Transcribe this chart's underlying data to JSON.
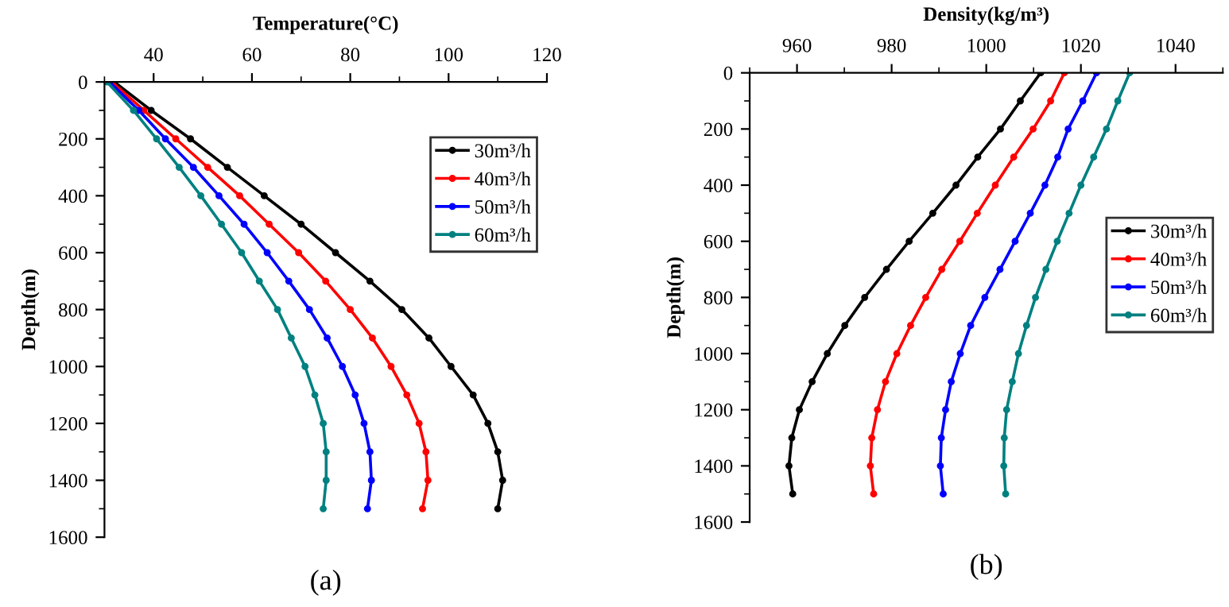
{
  "chart_data": [
    {
      "type": "line",
      "xlabel": "Temperature(°C)",
      "ylabel": "Depth(m)",
      "annotations": [
        "(a)"
      ],
      "xlim": [
        30,
        120
      ],
      "xticks": [
        40,
        60,
        80,
        100,
        120
      ],
      "ylim": [
        1600,
        0
      ],
      "yticks": [
        0,
        200,
        400,
        600,
        800,
        1000,
        1200,
        1400,
        1600
      ],
      "legend": "top right",
      "marker": "circle",
      "grid": false,
      "series": [
        {
          "name": "30m³/h",
          "color": "#000000",
          "x": [
            32,
            39.5,
            47.5,
            55,
            62.5,
            70,
            77,
            84,
            90.5,
            96,
            100.5,
            105,
            108,
            110,
            111,
            110
          ],
          "values": [
            0,
            100,
            200,
            300,
            400,
            500,
            600,
            700,
            800,
            900,
            1000,
            1100,
            1200,
            1300,
            1400,
            1500
          ]
        },
        {
          "name": "40m³/h",
          "color": "#ff0000",
          "x": [
            31.5,
            38,
            44.5,
            51,
            57.5,
            63.5,
            69.5,
            75,
            80,
            84.5,
            88.3,
            91.5,
            94,
            95.4,
            95.8,
            94.7
          ],
          "values": [
            0,
            100,
            200,
            300,
            400,
            500,
            600,
            700,
            800,
            900,
            1000,
            1100,
            1200,
            1300,
            1400,
            1500
          ]
        },
        {
          "name": "50m³/h",
          "color": "#0000ff",
          "x": [
            31,
            37,
            42.4,
            48.1,
            53.3,
            58.4,
            63.1,
            67.5,
            71.7,
            75.3,
            78.4,
            81,
            82.8,
            84,
            84.3,
            83.5
          ],
          "values": [
            0,
            100,
            200,
            300,
            400,
            500,
            600,
            700,
            800,
            900,
            1000,
            1100,
            1200,
            1300,
            1400,
            1500
          ]
        },
        {
          "name": "60m³/h",
          "color": "#008080",
          "x": [
            30.5,
            35.9,
            40.6,
            45.2,
            49.6,
            53.8,
            57.9,
            61.5,
            65.2,
            68,
            70.8,
            72.8,
            74.5,
            75.1,
            75.1,
            74.5
          ],
          "values": [
            0,
            100,
            200,
            300,
            400,
            500,
            600,
            700,
            800,
            900,
            1000,
            1100,
            1200,
            1300,
            1400,
            1500
          ]
        }
      ]
    },
    {
      "type": "line",
      "xlabel": "Density(kg/m³)",
      "ylabel": "Depth(m)",
      "annotations": [
        "(b)"
      ],
      "xlim": [
        950,
        1050
      ],
      "xticks": [
        960,
        980,
        1000,
        1020,
        1040
      ],
      "ylim": [
        1600,
        0
      ],
      "yticks": [
        0,
        200,
        400,
        600,
        800,
        1000,
        1200,
        1400,
        1600
      ],
      "legend": "right",
      "marker": "circle",
      "grid": false,
      "series": [
        {
          "name": "30m³/h",
          "color": "#000000",
          "x": [
            1011.5,
            1007.2,
            1003,
            998.2,
            993.6,
            988.7,
            983.7,
            978.9,
            974.3,
            970.1,
            966.4,
            963.2,
            960.5,
            958.9,
            958.3,
            959.1
          ],
          "values": [
            0,
            100,
            200,
            300,
            400,
            500,
            600,
            700,
            800,
            900,
            1000,
            1100,
            1200,
            1300,
            1400,
            1500
          ]
        },
        {
          "name": "40m³/h",
          "color": "#ff0000",
          "x": [
            1016.5,
            1013.6,
            1009.9,
            1005.8,
            1001.9,
            998.1,
            994.4,
            990.6,
            987.2,
            984,
            981.1,
            978.7,
            977,
            975.8,
            975.5,
            976.2
          ],
          "values": [
            0,
            100,
            200,
            300,
            400,
            500,
            600,
            700,
            800,
            900,
            1000,
            1100,
            1200,
            1300,
            1400,
            1500
          ]
        },
        {
          "name": "50m³/h",
          "color": "#0000ff",
          "x": [
            1023.3,
            1020.4,
            1017.3,
            1015.1,
            1012.4,
            1009.3,
            1006.1,
            1002.9,
            999.7,
            996.7,
            994.5,
            992.6,
            991.4,
            990.5,
            990.3,
            990.9
          ],
          "values": [
            0,
            100,
            200,
            300,
            400,
            500,
            600,
            700,
            800,
            900,
            1000,
            1100,
            1200,
            1300,
            1400,
            1500
          ]
        },
        {
          "name": "60m³/h",
          "color": "#008080",
          "x": [
            1030.3,
            1027.8,
            1025.4,
            1022.7,
            1020,
            1017.5,
            1015,
            1012.6,
            1010.4,
            1008.5,
            1006.8,
            1005.5,
            1004.3,
            1003.8,
            1003.7,
            1004.1
          ],
          "values": [
            0,
            100,
            200,
            300,
            400,
            500,
            600,
            700,
            800,
            900,
            1000,
            1100,
            1200,
            1300,
            1400,
            1500
          ]
        }
      ]
    }
  ]
}
